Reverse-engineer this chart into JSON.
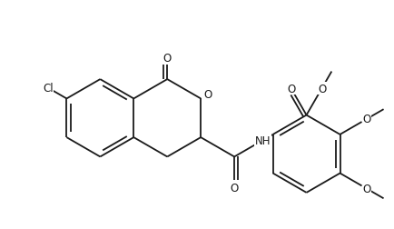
{
  "background": "#ffffff",
  "line_color": "#1a1a1a",
  "line_width": 1.3,
  "font_size": 8.5,
  "fig_width": 4.34,
  "fig_height": 2.53,
  "dpi": 100,
  "xlim": [
    0,
    10
  ],
  "ylim": [
    0,
    5.8
  ]
}
